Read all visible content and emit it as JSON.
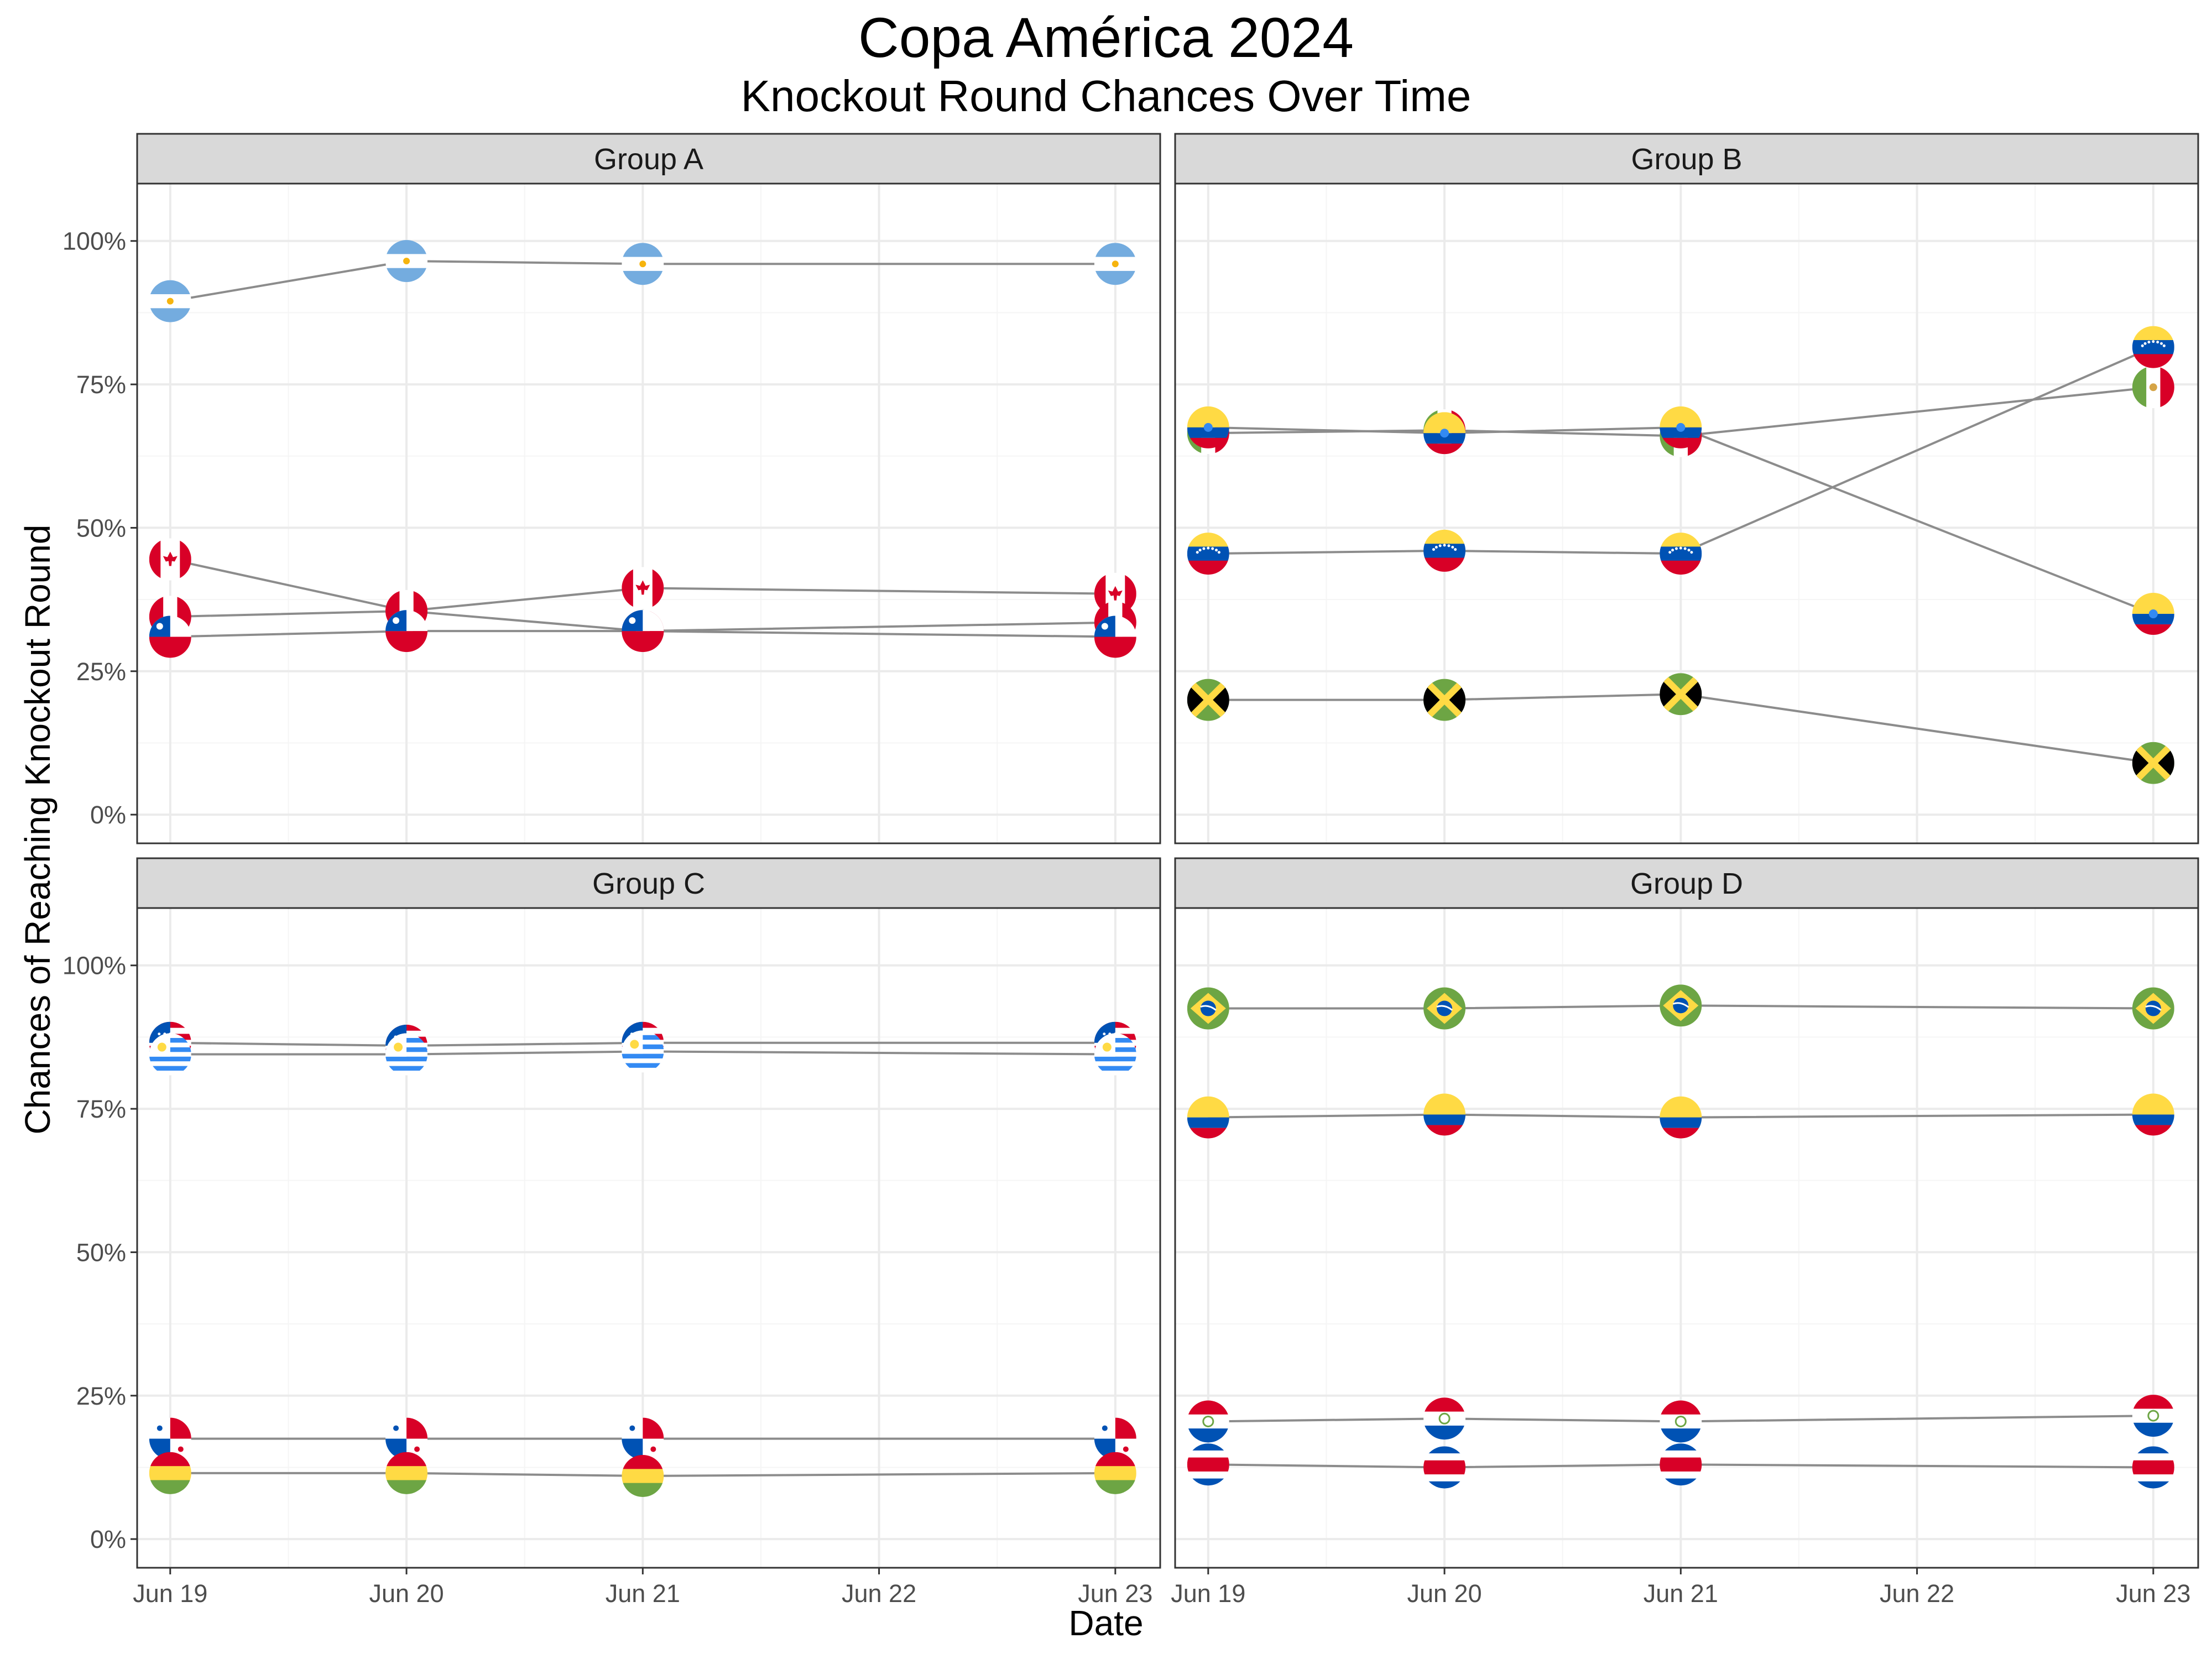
{
  "title": "Copa América 2024",
  "subtitle": "Knockout Round Chances Over Time",
  "chart_data": {
    "type": "line",
    "ylabel": "Chances of Reaching Knockout Round",
    "xlabel": "Date",
    "x_ticks": [
      "Jun 19",
      "Jun 20",
      "Jun 21",
      "Jun 22",
      "Jun 23"
    ],
    "y_ticks": [
      "0%",
      "25%",
      "50%",
      "75%",
      "100%"
    ],
    "ylim": [
      0,
      100
    ],
    "grid": true,
    "point_marker": "circular country flag",
    "panels": [
      {
        "name": "Group A",
        "series": [
          {
            "flag": "argentina",
            "x": [
              "Jun 19",
              "Jun 20",
              "Jun 21",
              "Jun 23"
            ],
            "values": [
              89.5,
              96.5,
              96,
              96
            ]
          },
          {
            "flag": "canada",
            "x": [
              "Jun 19",
              "Jun 20",
              "Jun 21",
              "Jun 23"
            ],
            "values": [
              44.5,
              35.5,
              39.5,
              38.5
            ]
          },
          {
            "flag": "peru",
            "x": [
              "Jun 19",
              "Jun 20",
              "Jun 21",
              "Jun 23"
            ],
            "values": [
              34.5,
              35.5,
              32,
              33.5
            ]
          },
          {
            "flag": "chile",
            "x": [
              "Jun 19",
              "Jun 20",
              "Jun 21",
              "Jun 23"
            ],
            "values": [
              31,
              32,
              32,
              31
            ]
          }
        ]
      },
      {
        "name": "Group B",
        "series": [
          {
            "flag": "mexico",
            "x": [
              "Jun 19",
              "Jun 20",
              "Jun 21",
              "Jun 23"
            ],
            "values": [
              66.5,
              67,
              66,
              74.5
            ]
          },
          {
            "flag": "ecuador",
            "x": [
              "Jun 19",
              "Jun 20",
              "Jun 21",
              "Jun 23"
            ],
            "values": [
              67.5,
              66.5,
              67.5,
              35
            ]
          },
          {
            "flag": "venezuela",
            "x": [
              "Jun 19",
              "Jun 20",
              "Jun 21",
              "Jun 23"
            ],
            "values": [
              45.5,
              46,
              45.5,
              81.5
            ]
          },
          {
            "flag": "jamaica",
            "x": [
              "Jun 19",
              "Jun 20",
              "Jun 21",
              "Jun 23"
            ],
            "values": [
              20,
              20,
              21,
              9
            ]
          }
        ]
      },
      {
        "name": "Group C",
        "series": [
          {
            "flag": "usa",
            "x": [
              "Jun 19",
              "Jun 20",
              "Jun 21",
              "Jun 23"
            ],
            "values": [
              86.5,
              86,
              86.5,
              86.5
            ]
          },
          {
            "flag": "uruguay",
            "x": [
              "Jun 19",
              "Jun 20",
              "Jun 21",
              "Jun 23"
            ],
            "values": [
              84.5,
              84.5,
              85,
              84.5
            ]
          },
          {
            "flag": "panama",
            "x": [
              "Jun 19",
              "Jun 20",
              "Jun 21",
              "Jun 23"
            ],
            "values": [
              17.5,
              17.5,
              17.5,
              17.5
            ]
          },
          {
            "flag": "bolivia",
            "x": [
              "Jun 19",
              "Jun 20",
              "Jun 21",
              "Jun 23"
            ],
            "values": [
              11.5,
              11.5,
              11,
              11.5
            ]
          }
        ]
      },
      {
        "name": "Group D",
        "series": [
          {
            "flag": "brazil",
            "x": [
              "Jun 19",
              "Jun 20",
              "Jun 21",
              "Jun 23"
            ],
            "values": [
              92.5,
              92.5,
              93,
              92.5
            ]
          },
          {
            "flag": "colombia",
            "x": [
              "Jun 19",
              "Jun 20",
              "Jun 21",
              "Jun 23"
            ],
            "values": [
              73.5,
              74,
              73.5,
              74
            ]
          },
          {
            "flag": "paraguay",
            "x": [
              "Jun 19",
              "Jun 20",
              "Jun 21",
              "Jun 23"
            ],
            "values": [
              20.5,
              21,
              20.5,
              21.5
            ]
          },
          {
            "flag": "costa-rica",
            "x": [
              "Jun 19",
              "Jun 20",
              "Jun 21",
              "Jun 23"
            ],
            "values": [
              13,
              12.5,
              13,
              12.5
            ]
          }
        ]
      }
    ]
  },
  "colors": {
    "line": "#8c8c8c",
    "strip_fill": "#d9d9d9",
    "grid_major": "#ebebeb",
    "grid_minor": "#f5f5f5",
    "panel_border": "#333333",
    "tick_label": "#4d4d4d"
  }
}
